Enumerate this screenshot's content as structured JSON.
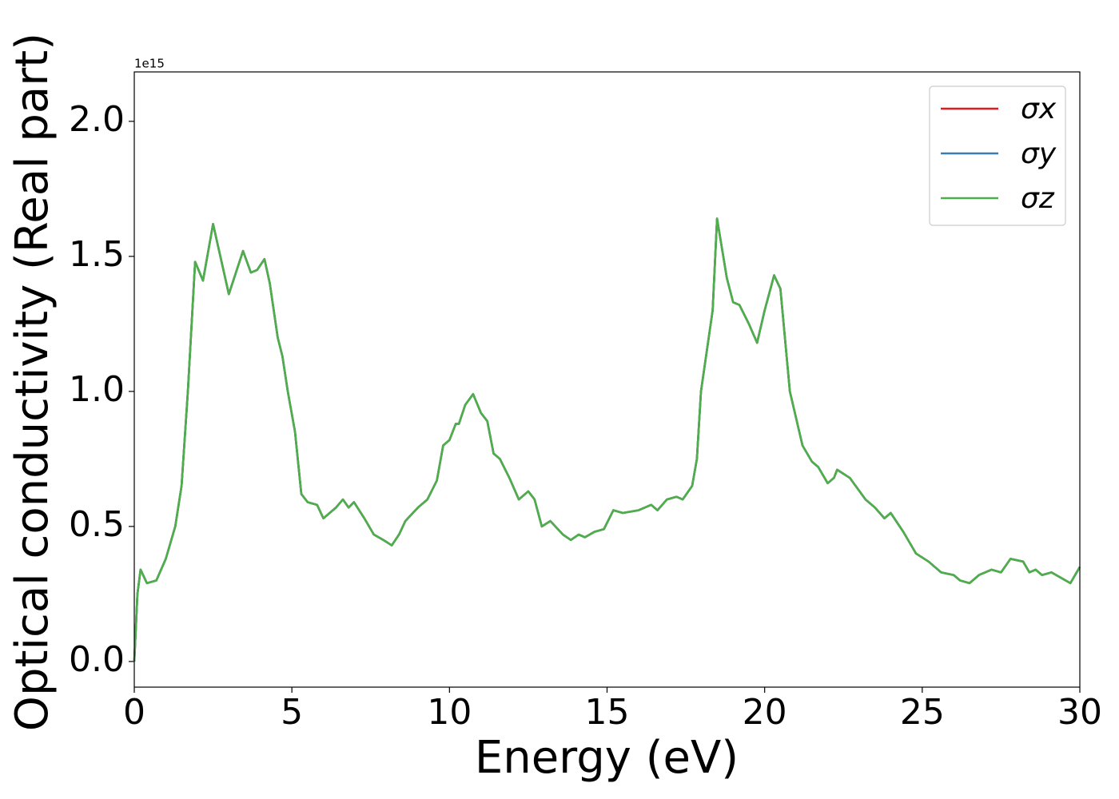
{
  "chart_data": {
    "type": "line",
    "x_label": "Energy (eV)",
    "y_label": "Optical conductivity (Real part)",
    "y_offset_label": "1e15",
    "x": [
      0,
      0.1,
      0.2,
      0.4,
      0.7,
      1.0,
      1.3,
      1.5,
      1.7,
      1.93,
      2.18,
      2.5,
      3.0,
      3.45,
      3.7,
      3.9,
      4.13,
      4.3,
      4.55,
      4.7,
      4.87,
      5.1,
      5.3,
      5.5,
      5.8,
      6.0,
      6.4,
      6.62,
      6.8,
      6.97,
      7.3,
      7.6,
      7.9,
      8.17,
      8.4,
      8.6,
      9.0,
      9.3,
      9.6,
      9.8,
      10.0,
      10.2,
      10.3,
      10.5,
      10.75,
      11.0,
      11.2,
      11.4,
      11.6,
      11.9,
      12.2,
      12.5,
      12.7,
      12.93,
      13.2,
      13.6,
      13.85,
      14.1,
      14.3,
      14.6,
      14.9,
      15.2,
      15.5,
      16.0,
      16.4,
      16.6,
      16.9,
      17.2,
      17.4,
      17.7,
      17.85,
      17.98,
      18.35,
      18.49,
      18.8,
      19.0,
      19.2,
      19.5,
      19.76,
      20.0,
      20.3,
      20.5,
      20.8,
      21.2,
      21.5,
      21.7,
      22.0,
      22.2,
      22.3,
      22.7,
      23.2,
      23.5,
      23.8,
      24.0,
      24.4,
      24.8,
      25.2,
      25.6,
      26.0,
      26.2,
      26.5,
      26.8,
      27.2,
      27.5,
      27.8,
      28.2,
      28.4,
      28.6,
      28.8,
      29.1,
      29.7,
      29.9,
      30
    ],
    "series": [
      {
        "name": "σx",
        "color": "#e41a1c",
        "values": [
          0,
          0.25,
          0.34,
          0.29,
          0.3,
          0.38,
          0.5,
          0.65,
          1.0,
          1.48,
          1.41,
          1.62,
          1.36,
          1.52,
          1.44,
          1.45,
          1.49,
          1.4,
          1.2,
          1.13,
          1.0,
          0.85,
          0.62,
          0.59,
          0.58,
          0.53,
          0.57,
          0.6,
          0.57,
          0.59,
          0.53,
          0.47,
          0.45,
          0.43,
          0.47,
          0.52,
          0.57,
          0.6,
          0.67,
          0.8,
          0.82,
          0.88,
          0.88,
          0.95,
          0.99,
          0.92,
          0.89,
          0.77,
          0.75,
          0.68,
          0.6,
          0.63,
          0.6,
          0.5,
          0.52,
          0.47,
          0.45,
          0.47,
          0.46,
          0.48,
          0.49,
          0.56,
          0.55,
          0.56,
          0.58,
          0.56,
          0.6,
          0.61,
          0.6,
          0.65,
          0.75,
          1.0,
          1.3,
          1.64,
          1.42,
          1.33,
          1.32,
          1.25,
          1.18,
          1.3,
          1.43,
          1.38,
          1.0,
          0.8,
          0.74,
          0.72,
          0.66,
          0.68,
          0.71,
          0.68,
          0.6,
          0.57,
          0.53,
          0.55,
          0.48,
          0.4,
          0.37,
          0.33,
          0.32,
          0.3,
          0.29,
          0.32,
          0.34,
          0.33,
          0.38,
          0.37,
          0.33,
          0.34,
          0.32,
          0.33,
          0.29,
          0.33,
          0.35
        ]
      },
      {
        "name": "σy",
        "color": "#377eb8",
        "values": [
          0,
          0.25,
          0.34,
          0.29,
          0.3,
          0.38,
          0.5,
          0.65,
          1.0,
          1.48,
          1.41,
          1.62,
          1.36,
          1.52,
          1.44,
          1.45,
          1.49,
          1.4,
          1.2,
          1.13,
          1.0,
          0.85,
          0.62,
          0.59,
          0.58,
          0.53,
          0.57,
          0.6,
          0.57,
          0.59,
          0.53,
          0.47,
          0.45,
          0.43,
          0.47,
          0.52,
          0.57,
          0.6,
          0.67,
          0.8,
          0.82,
          0.88,
          0.88,
          0.95,
          0.99,
          0.92,
          0.89,
          0.77,
          0.75,
          0.68,
          0.6,
          0.63,
          0.6,
          0.5,
          0.52,
          0.47,
          0.45,
          0.47,
          0.46,
          0.48,
          0.49,
          0.56,
          0.55,
          0.56,
          0.58,
          0.56,
          0.6,
          0.61,
          0.6,
          0.65,
          0.75,
          1.0,
          1.3,
          1.64,
          1.42,
          1.33,
          1.32,
          1.25,
          1.18,
          1.3,
          1.43,
          1.38,
          1.0,
          0.8,
          0.74,
          0.72,
          0.66,
          0.68,
          0.71,
          0.68,
          0.6,
          0.57,
          0.53,
          0.55,
          0.48,
          0.4,
          0.37,
          0.33,
          0.32,
          0.3,
          0.29,
          0.32,
          0.34,
          0.33,
          0.38,
          0.37,
          0.33,
          0.34,
          0.32,
          0.33,
          0.29,
          0.33,
          0.35
        ]
      },
      {
        "name": "σz",
        "color": "#4daf4a",
        "values": [
          0,
          0.25,
          0.34,
          0.29,
          0.3,
          0.38,
          0.5,
          0.65,
          1.0,
          1.48,
          1.41,
          1.62,
          1.36,
          1.52,
          1.44,
          1.45,
          1.49,
          1.4,
          1.2,
          1.13,
          1.0,
          0.85,
          0.62,
          0.59,
          0.58,
          0.53,
          0.57,
          0.6,
          0.57,
          0.59,
          0.53,
          0.47,
          0.45,
          0.43,
          0.47,
          0.52,
          0.57,
          0.6,
          0.67,
          0.8,
          0.82,
          0.88,
          0.88,
          0.95,
          0.99,
          0.92,
          0.89,
          0.77,
          0.75,
          0.68,
          0.6,
          0.63,
          0.6,
          0.5,
          0.52,
          0.47,
          0.45,
          0.47,
          0.46,
          0.48,
          0.49,
          0.56,
          0.55,
          0.56,
          0.58,
          0.56,
          0.6,
          0.61,
          0.6,
          0.65,
          0.75,
          1.0,
          1.3,
          1.64,
          1.42,
          1.33,
          1.32,
          1.25,
          1.18,
          1.3,
          1.43,
          1.38,
          1.0,
          0.8,
          0.74,
          0.72,
          0.66,
          0.68,
          0.71,
          0.68,
          0.6,
          0.57,
          0.53,
          0.55,
          0.48,
          0.4,
          0.37,
          0.33,
          0.32,
          0.3,
          0.29,
          0.32,
          0.34,
          0.33,
          0.38,
          0.37,
          0.33,
          0.34,
          0.32,
          0.33,
          0.29,
          0.33,
          0.35
        ]
      }
    ],
    "xlim": [
      0,
      30
    ],
    "xticks": [
      0,
      5,
      10,
      15,
      20,
      25,
      30
    ],
    "ylim": [
      -0.095,
      2.183
    ],
    "yticks": [
      {
        "value": 0,
        "label": "0.0"
      },
      0.5,
      {
        "value": 1,
        "label": "1.0"
      },
      1.5,
      {
        "value": 2,
        "label": "2.0"
      }
    ],
    "grid": false,
    "legend": "upper right"
  }
}
